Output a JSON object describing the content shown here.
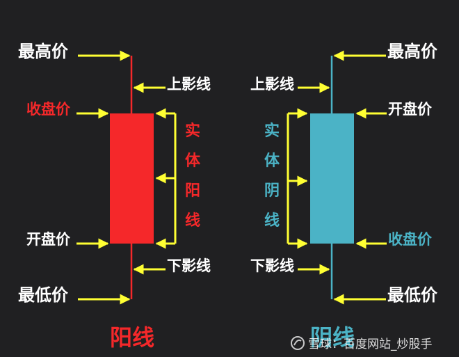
{
  "colors": {
    "background": "#202022",
    "yang": "#f5282a",
    "yin": "#4bb3c6",
    "arrow": "#ffff33",
    "label_white": "#ffffff"
  },
  "left": {
    "high_label": "最高价",
    "upper_shadow_label": "上影线",
    "close_label": "收盘价",
    "body_label": [
      "实",
      "体",
      "阳",
      "线"
    ],
    "open_label": "开盘价",
    "lower_shadow_label": "下影线",
    "low_label": "最低价",
    "title": "阳线"
  },
  "right": {
    "high_label": "最高价",
    "upper_shadow_label": "上影线",
    "open_label": "开盘价",
    "body_label": [
      "实",
      "体",
      "阴",
      "线"
    ],
    "close_label": "收盘价",
    "lower_shadow_label": "下影线",
    "low_label": "最低价",
    "title": "阴线"
  },
  "watermark": "雪球：百度网站_炒股手"
}
